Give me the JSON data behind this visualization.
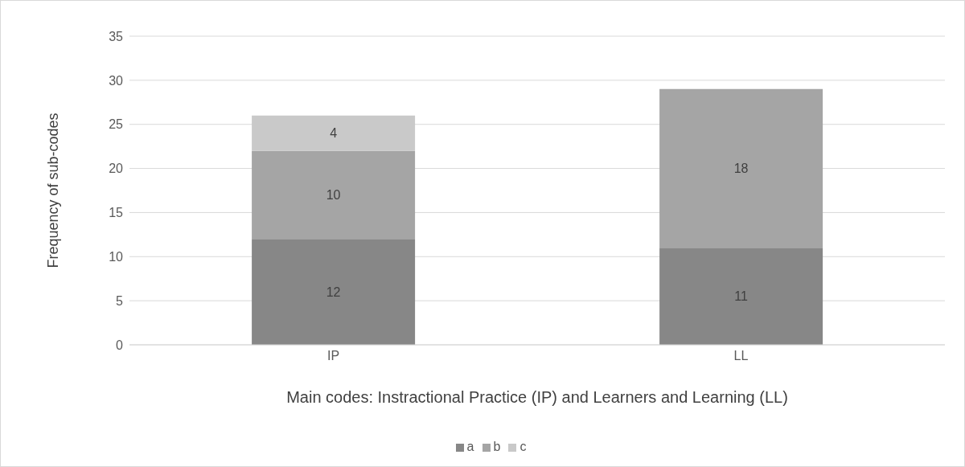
{
  "chart_data": {
    "type": "bar",
    "stacked": true,
    "xlabel": "Main codes: Instractional Practice (IP) and Learners and Learning (LL)",
    "ylabel": "Frequency of sub-codes",
    "categories": [
      "IP",
      "LL"
    ],
    "series": [
      {
        "name": "a",
        "color": "#878787",
        "values": [
          12,
          11
        ]
      },
      {
        "name": "b",
        "color": "#a5a5a5",
        "values": [
          10,
          18
        ]
      },
      {
        "name": "c",
        "color": "#c9c9c9",
        "values": [
          4,
          null
        ]
      }
    ],
    "ylim": [
      0,
      35
    ],
    "yticks": [
      0,
      5,
      10,
      15,
      20,
      25,
      30,
      35
    ],
    "grid": "y",
    "legend": "bottom",
    "data_labels": true
  }
}
